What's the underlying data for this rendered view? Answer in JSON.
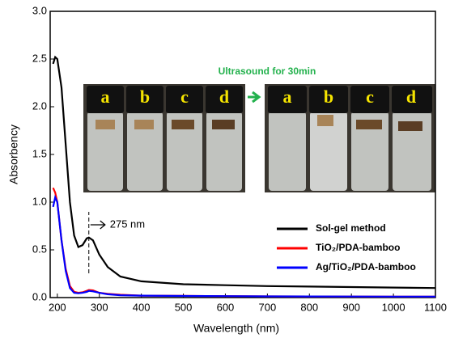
{
  "chart_data": {
    "type": "line",
    "x_label": "Wavelength (nm)",
    "y_label": "Absorbency",
    "x": [
      190,
      195,
      200,
      210,
      220,
      230,
      240,
      250,
      260,
      270,
      275,
      285,
      300,
      320,
      350,
      400,
      500,
      600,
      700,
      800,
      900,
      1000,
      1100
    ],
    "series": [
      {
        "name": "Sol-gel method",
        "color": "#000000",
        "values": [
          2.45,
          2.52,
          2.5,
          2.2,
          1.6,
          1.0,
          0.65,
          0.53,
          0.55,
          0.62,
          0.63,
          0.6,
          0.45,
          0.32,
          0.22,
          0.17,
          0.14,
          0.13,
          0.12,
          0.115,
          0.11,
          0.105,
          0.1
        ]
      },
      {
        "name": "TiO₂/PDA-bamboo",
        "color": "#ff0000",
        "values": [
          1.15,
          1.1,
          1.0,
          0.6,
          0.3,
          0.12,
          0.06,
          0.05,
          0.055,
          0.07,
          0.08,
          0.075,
          0.05,
          0.04,
          0.03,
          0.02,
          0.018,
          0.015,
          0.013,
          0.012,
          0.011,
          0.01,
          0.01
        ]
      },
      {
        "name": "Ag/TiO₂/PDA-bamboo",
        "color": "#0000ff",
        "values": [
          0.95,
          1.05,
          1.0,
          0.6,
          0.28,
          0.1,
          0.05,
          0.045,
          0.05,
          0.06,
          0.07,
          0.065,
          0.05,
          0.035,
          0.025,
          0.02,
          0.017,
          0.015,
          0.013,
          0.012,
          0.011,
          0.01,
          0.01
        ]
      }
    ],
    "xlim": [
      183,
      1100
    ],
    "xticks": [
      200,
      300,
      400,
      500,
      600,
      700,
      800,
      900,
      1000,
      1100
    ],
    "ylim": [
      0,
      3
    ],
    "yticks": [
      {
        "value": 0,
        "label": "0.0"
      },
      {
        "value": 0.5,
        "label": "0.5"
      },
      {
        "value": 1,
        "label": "1.0"
      },
      {
        "value": 1.5,
        "label": "1.5"
      },
      {
        "value": 2,
        "label": "2.0"
      },
      {
        "value": 2.5,
        "label": "2.5"
      },
      {
        "value": 3,
        "label": "3.0"
      }
    ],
    "legend": "lower right",
    "annotations": [
      {
        "text": "275 nm",
        "x": 275
      }
    ],
    "inset": {
      "caption": "Ultrasound for 30min",
      "before_labels": [
        "a",
        "b",
        "c",
        "d"
      ],
      "after_labels": [
        "a",
        "b",
        "c",
        "d"
      ]
    }
  }
}
